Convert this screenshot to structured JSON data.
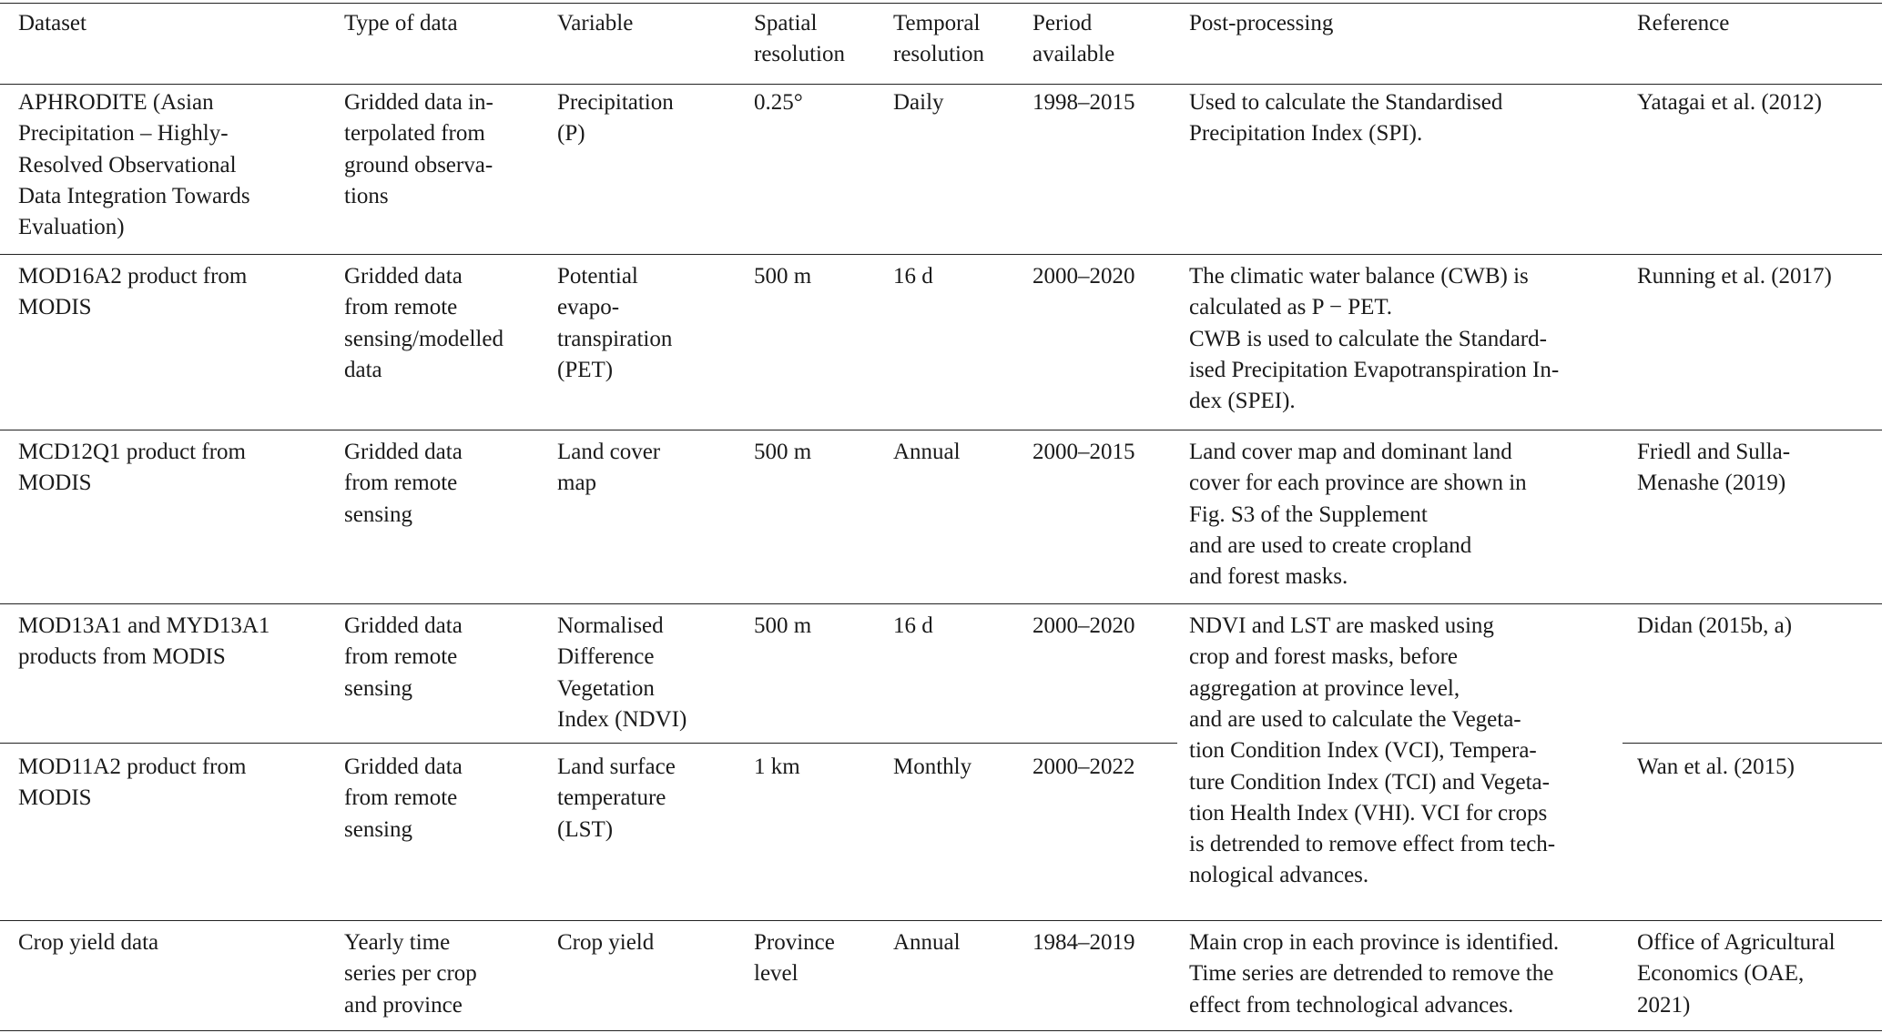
{
  "table": {
    "header": [
      [
        "Dataset"
      ],
      [
        "Type of data"
      ],
      [
        "Variable"
      ],
      [
        "Spatial",
        "resolution"
      ],
      [
        "Temporal",
        "resolution"
      ],
      [
        "Period",
        "available"
      ],
      [
        "Post-processing"
      ],
      [
        "Reference"
      ]
    ],
    "rows": [
      [
        [
          "APHRODITE (Asian",
          "Precipitation – Highly-",
          "Resolved Observational",
          "Data Integration Towards",
          "Evaluation)"
        ],
        [
          "Gridded data in-",
          "terpolated from",
          "ground observa-",
          "tions"
        ],
        [
          "Precipitation",
          "(P)"
        ],
        [
          "0.25°"
        ],
        [
          "Daily"
        ],
        [
          "1998–2015"
        ],
        [
          "Used to calculate the Standardised",
          "Precipitation Index (SPI)."
        ],
        [
          "Yatagai et al. (2012)"
        ]
      ],
      [
        [
          "MOD16A2 product from",
          "MODIS"
        ],
        [
          "Gridded data",
          "from remote",
          "sensing/modelled",
          "data"
        ],
        [
          "Potential",
          "evapo-",
          "transpiration",
          "(PET)"
        ],
        [
          "500 m"
        ],
        [
          "16 d"
        ],
        [
          "2000–2020"
        ],
        [
          "The climatic water balance (CWB) is",
          "calculated as P − PET.",
          "CWB is used to calculate the Standard-",
          "ised Precipitation Evapotranspiration In-",
          "dex (SPEI)."
        ],
        [
          "Running et al. (2017)"
        ]
      ],
      [
        [
          "MCD12Q1 product from",
          "MODIS"
        ],
        [
          "Gridded data",
          "from remote",
          "sensing"
        ],
        [
          "Land cover",
          "map"
        ],
        [
          "500 m"
        ],
        [
          "Annual"
        ],
        [
          "2000–2015"
        ],
        [
          "Land cover map and dominant land",
          "cover for each province are shown in",
          "Fig. S3 of the Supplement",
          "and are used to create cropland",
          "and forest masks."
        ],
        [
          "Friedl and Sulla-",
          "Menashe (2019)"
        ]
      ],
      [
        [
          "MOD13A1 and MYD13A1",
          "products from MODIS"
        ],
        [
          "Gridded data",
          "from remote",
          "sensing"
        ],
        [
          "Normalised",
          "Difference",
          "Vegetation",
          "Index (NDVI)"
        ],
        [
          "500 m"
        ],
        [
          "16 d"
        ],
        [
          "2000–2020"
        ],
        [
          "NDVI and LST are masked using",
          "crop and forest masks, before",
          "aggregation at province level,",
          "and are used to calculate the Vegeta-",
          "tion Condition Index (VCI), Tempera-",
          "ture Condition Index (TCI) and Vegeta-",
          "tion Health Index (VHI). VCI for crops",
          "is detrended to remove effect from tech-",
          "nological advances."
        ],
        [
          "Didan (2015b, a)"
        ]
      ],
      [
        [
          "MOD11A2 product from",
          "MODIS"
        ],
        [
          "Gridded data",
          "from remote",
          "sensing"
        ],
        [
          "Land surface",
          "temperature",
          "(LST)"
        ],
        [
          "1 km"
        ],
        [
          "Monthly"
        ],
        [
          "2000–2022"
        ],
        [
          "Wan et al. (2015)"
        ]
      ],
      [
        [
          "Crop yield data"
        ],
        [
          "Yearly time",
          "series per crop",
          "and province"
        ],
        [
          "Crop yield"
        ],
        [
          "Province",
          "level"
        ],
        [
          "Annual"
        ],
        [
          "1984–2019"
        ],
        [
          "Main crop in each province is identified.",
          "Time series are detrended to remove the",
          "effect from technological advances."
        ],
        [
          "Office of Agricultural",
          "Economics (OAE,",
          "2021)"
        ]
      ]
    ]
  }
}
